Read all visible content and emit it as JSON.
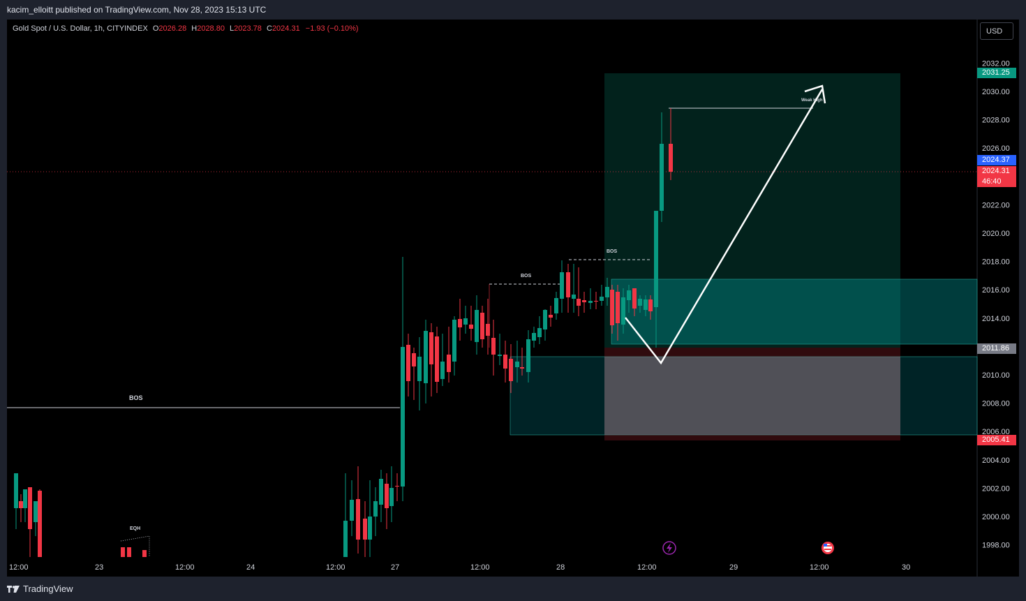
{
  "header": {
    "published_by": "kacim_elloitt published on TradingView.com, Nov 28, 2023 15:13 UTC"
  },
  "symbol": {
    "name": "Gold Spot / U.S. Dollar, 1h, CITYINDEX",
    "open_label": "O",
    "open": "2026.28",
    "high_label": "H",
    "high": "2028.80",
    "low_label": "L",
    "low": "2023.78",
    "close_label": "C",
    "close": "2024.31",
    "change": "−1.93 (−0.10%)"
  },
  "currency_button": "USD",
  "price_axis": {
    "ticks": [
      "2032.00",
      "2030.00",
      "2028.00",
      "2026.00",
      "2022.00",
      "2020.00",
      "2018.00",
      "2016.00",
      "2014.00",
      "2010.00",
      "2008.00",
      "2006.00",
      "2004.00",
      "2002.00",
      "2000.00",
      "1998.00"
    ],
    "tags": {
      "take_profit": "2031.25",
      "bid": "2024.37",
      "last": "2024.31",
      "countdown": "46:40",
      "entry": "2011.86",
      "stop": "2005.41"
    }
  },
  "time_axis": {
    "labels": [
      "12:00",
      "23",
      "12:00",
      "24",
      "12:00",
      "27",
      "12:00",
      "28",
      "12:00",
      "29",
      "12:00",
      "30"
    ]
  },
  "annotations": {
    "bos_main": "BOS",
    "bos_mid": "BOS",
    "bos_top": "BOS",
    "eqh": "EQH",
    "weak_high": "Weak High"
  },
  "colors": {
    "up": "#089981",
    "down": "#f23645",
    "bid_tag": "#2962ff",
    "entry_tag": "#787b86",
    "tp_tag": "#089981"
  },
  "footer": {
    "brand": "TradingView"
  }
}
